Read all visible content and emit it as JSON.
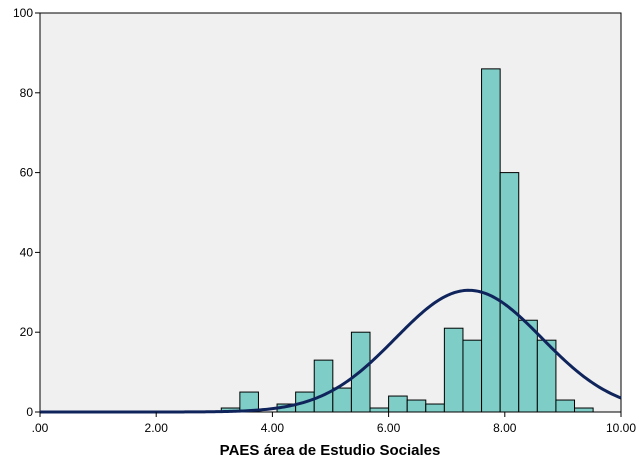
{
  "chart_data": {
    "type": "bar",
    "subtype": "histogram-with-normal-curve",
    "title": "",
    "xlabel": "PAES área de Estudio Sociales",
    "ylabel": "",
    "xlim": [
      0,
      10
    ],
    "ylim": [
      0,
      100
    ],
    "x_ticks": [
      {
        "value": 0,
        "label": ".00"
      },
      {
        "value": 2,
        "label": "2.00"
      },
      {
        "value": 4,
        "label": "4.00"
      },
      {
        "value": 6,
        "label": "6.00"
      },
      {
        "value": 8,
        "label": "8.00"
      },
      {
        "value": 10,
        "label": "10.00"
      }
    ],
    "y_ticks": [
      {
        "value": 0,
        "label": "0"
      },
      {
        "value": 20,
        "label": "20"
      },
      {
        "value": 40,
        "label": "40"
      },
      {
        "value": 60,
        "label": "60"
      },
      {
        "value": 80,
        "label": "80"
      },
      {
        "value": 100,
        "label": "100"
      }
    ],
    "bins": [
      {
        "start": 3.12,
        "end": 3.44,
        "count": 1
      },
      {
        "start": 3.44,
        "end": 3.76,
        "count": 5
      },
      {
        "start": 4.08,
        "end": 4.4,
        "count": 2
      },
      {
        "start": 4.4,
        "end": 4.72,
        "count": 5
      },
      {
        "start": 4.72,
        "end": 5.04,
        "count": 13
      },
      {
        "start": 5.04,
        "end": 5.36,
        "count": 6
      },
      {
        "start": 5.36,
        "end": 5.68,
        "count": 20
      },
      {
        "start": 5.68,
        "end": 6.0,
        "count": 1
      },
      {
        "start": 6.0,
        "end": 6.32,
        "count": 4
      },
      {
        "start": 6.32,
        "end": 6.64,
        "count": 3
      },
      {
        "start": 6.64,
        "end": 6.96,
        "count": 2
      },
      {
        "start": 6.96,
        "end": 7.28,
        "count": 21
      },
      {
        "start": 7.28,
        "end": 7.6,
        "count": 18
      },
      {
        "start": 7.6,
        "end": 7.92,
        "count": 86
      },
      {
        "start": 7.92,
        "end": 8.24,
        "count": 60
      },
      {
        "start": 8.24,
        "end": 8.56,
        "count": 23
      },
      {
        "start": 8.56,
        "end": 8.88,
        "count": 18
      },
      {
        "start": 8.88,
        "end": 9.2,
        "count": 3
      },
      {
        "start": 9.2,
        "end": 9.52,
        "count": 1
      }
    ],
    "normal_curve": {
      "mean": 7.38,
      "std_dev": 1.26,
      "peak": 30.5
    },
    "grid": false,
    "colors": {
      "plot_background": "#f0f0f0",
      "bar_fill": "#7ecdc6",
      "bar_stroke": "#000000",
      "curve": "#10245c",
      "axis": "#000000"
    }
  }
}
